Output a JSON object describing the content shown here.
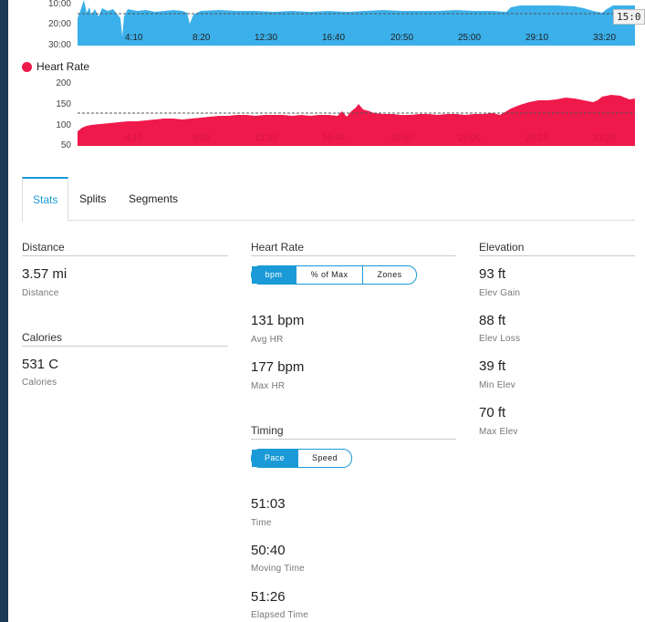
{
  "pace_chart": {
    "y_ticks": [
      "10:00",
      "20:00",
      "30:00"
    ],
    "x_ticks": [
      "4:10",
      "8:20",
      "12:30",
      "16:40",
      "20:50",
      "25:00",
      "29:10",
      "33:20"
    ],
    "tooltip": "15:0",
    "color": "#3bb0ea"
  },
  "hr_chart": {
    "legend": "Heart Rate",
    "y_ticks": [
      "200",
      "150",
      "100",
      "50"
    ],
    "x_ticks": [
      "4:10",
      "8:20",
      "12:30",
      "16:40",
      "20:50",
      "25:00",
      "29:10",
      "33:20"
    ],
    "color": "#f0194b"
  },
  "tabs": [
    {
      "label": "Stats"
    },
    {
      "label": "Splits"
    },
    {
      "label": "Segments"
    }
  ],
  "distance": {
    "title": "Distance",
    "value": "3.57 mi",
    "label": "Distance"
  },
  "calories": {
    "title": "Calories",
    "value": "531 C",
    "label": "Calories"
  },
  "heart_rate": {
    "title": "Heart Rate",
    "toggle": [
      "bpm",
      "% of Max",
      "Zones"
    ],
    "avg_value": "131 bpm",
    "avg_label": "Avg HR",
    "max_value": "177 bpm",
    "max_label": "Max HR"
  },
  "timing": {
    "title": "Timing",
    "toggle": [
      "Pace",
      "Speed"
    ],
    "time_value": "51:03",
    "time_label": "Time",
    "moving_value": "50:40",
    "moving_label": "Moving Time",
    "elapsed_value": "51:26",
    "elapsed_label": "Elapsed Time"
  },
  "elevation": {
    "title": "Elevation",
    "gain_value": "93 ft",
    "gain_label": "Elev Gain",
    "loss_value": "88 ft",
    "loss_label": "Elev Loss",
    "min_value": "39 ft",
    "min_label": "Min Elev",
    "max_value": "70 ft",
    "max_label": "Max Elev"
  }
}
